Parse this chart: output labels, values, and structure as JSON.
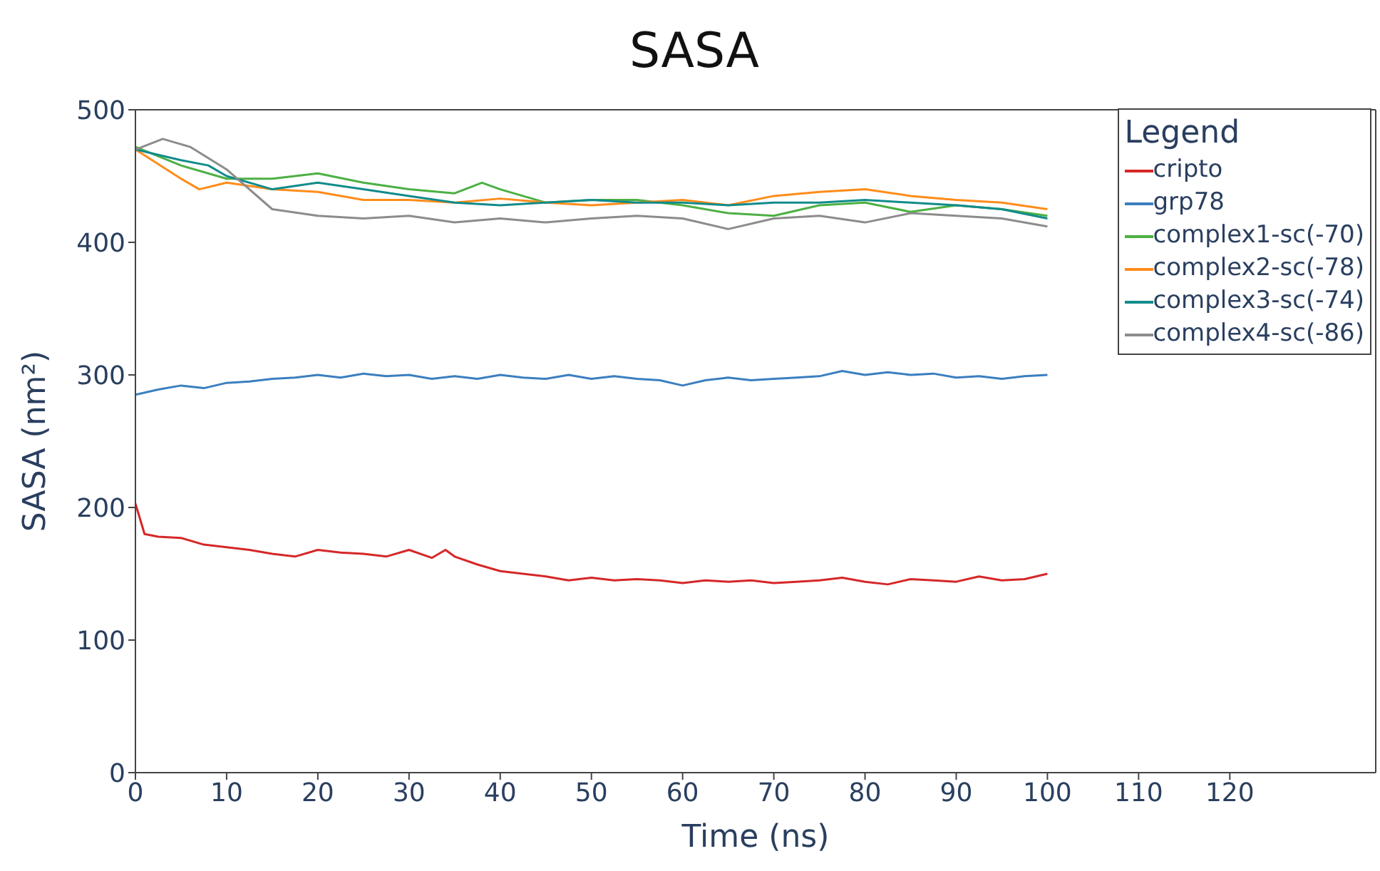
{
  "chart_data": {
    "type": "line",
    "title": "SASA",
    "xlabel": "Time (ns)",
    "ylabel": "SASA (nm²)",
    "legend_title": "Legend",
    "legend": "top right",
    "marker": "none",
    "line_style": "solid",
    "xlim": [
      0,
      136
    ],
    "xticks": [
      0,
      10,
      20,
      30,
      40,
      50,
      60,
      70,
      80,
      90,
      100,
      110,
      120
    ],
    "ylim": [
      0,
      500
    ],
    "yticks": [
      0,
      100,
      200,
      300,
      400,
      500
    ],
    "series": [
      {
        "name": "cripto",
        "color": "#d62728",
        "x": [
          0,
          1,
          2.5,
          5,
          7.5,
          10,
          12.5,
          15,
          17.5,
          20,
          22.5,
          25,
          27.5,
          30,
          32.5,
          34,
          35,
          37.5,
          40,
          42.5,
          45,
          47.5,
          50,
          52.5,
          55,
          57.5,
          60,
          62.5,
          65,
          67.5,
          70,
          72.5,
          75,
          77.5,
          80,
          82.5,
          85,
          87.5,
          90,
          92.5,
          95,
          97.5,
          100
        ],
        "values": [
          203,
          180,
          178,
          177,
          172,
          170,
          168,
          165,
          163,
          168,
          166,
          165,
          163,
          168,
          162,
          168,
          163,
          157,
          152,
          150,
          148,
          145,
          147,
          145,
          146,
          145,
          143,
          145,
          144,
          145,
          143,
          144,
          145,
          147,
          144,
          142,
          146,
          145,
          144,
          148,
          145,
          146,
          150
        ]
      },
      {
        "name": "grp78",
        "color": "#3b7fbf",
        "x": [
          0,
          2.5,
          5,
          7.5,
          10,
          12.5,
          15,
          17.5,
          20,
          22.5,
          25,
          27.5,
          30,
          32.5,
          35,
          37.5,
          40,
          42.5,
          45,
          47.5,
          50,
          52.5,
          55,
          57.5,
          60,
          62.5,
          65,
          67.5,
          70,
          72.5,
          75,
          77.5,
          80,
          82.5,
          85,
          87.5,
          90,
          92.5,
          95,
          97.5,
          100
        ],
        "values": [
          285,
          289,
          292,
          290,
          294,
          295,
          297,
          298,
          300,
          298,
          301,
          299,
          300,
          297,
          299,
          297,
          300,
          298,
          297,
          300,
          297,
          299,
          297,
          296,
          292,
          296,
          298,
          296,
          297,
          298,
          299,
          303,
          300,
          302,
          300,
          301,
          298,
          299,
          297,
          299,
          300
        ]
      },
      {
        "name": "complex1-sc(-70)",
        "color": "#4cb043",
        "x": [
          0,
          5,
          10,
          15,
          20,
          25,
          30,
          35,
          38,
          40,
          45,
          50,
          55,
          60,
          65,
          70,
          75,
          80,
          85,
          90,
          95,
          100
        ],
        "values": [
          472,
          458,
          448,
          448,
          452,
          445,
          440,
          437,
          445,
          440,
          430,
          432,
          432,
          428,
          422,
          420,
          428,
          430,
          423,
          428,
          425,
          420
        ]
      },
      {
        "name": "complex2-sc(-78)",
        "color": "#ff8c1a",
        "x": [
          0,
          5,
          7,
          10,
          15,
          20,
          25,
          30,
          35,
          40,
          45,
          50,
          55,
          60,
          65,
          70,
          75,
          80,
          85,
          90,
          95,
          100
        ],
        "values": [
          470,
          448,
          440,
          445,
          440,
          438,
          432,
          432,
          430,
          433,
          430,
          428,
          430,
          432,
          428,
          435,
          438,
          440,
          435,
          432,
          430,
          425
        ]
      },
      {
        "name": "complex3-sc(-74)",
        "color": "#128b8b",
        "x": [
          0,
          5,
          8,
          10,
          15,
          20,
          25,
          30,
          35,
          40,
          45,
          50,
          55,
          60,
          65,
          70,
          75,
          80,
          85,
          90,
          95,
          100
        ],
        "values": [
          470,
          462,
          458,
          450,
          440,
          445,
          440,
          435,
          430,
          428,
          430,
          432,
          430,
          430,
          428,
          430,
          430,
          432,
          430,
          428,
          425,
          418
        ]
      },
      {
        "name": "complex4-sc(-86)",
        "color": "#8c8c8c",
        "x": [
          0,
          3,
          6,
          10,
          15,
          20,
          25,
          30,
          35,
          40,
          45,
          50,
          55,
          60,
          65,
          70,
          75,
          80,
          85,
          90,
          95,
          100
        ],
        "values": [
          470,
          478,
          472,
          455,
          425,
          420,
          418,
          420,
          415,
          418,
          415,
          418,
          420,
          418,
          410,
          418,
          420,
          415,
          422,
          420,
          418,
          412
        ]
      }
    ]
  }
}
